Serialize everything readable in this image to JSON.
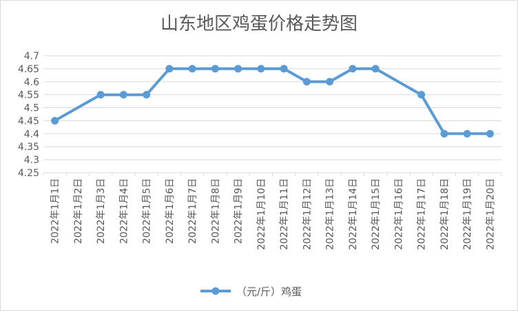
{
  "chart_data": {
    "type": "line",
    "title": "山东地区鸡蛋价格走势图",
    "xlabel": "",
    "ylabel": "",
    "categories": [
      "2022年1月1日",
      "2022年1月2日",
      "2022年1月3日",
      "2022年1月4日",
      "2022年1月5日",
      "2022年1月6日",
      "2022年1月7日",
      "2022年1月8日",
      "2022年1月9日",
      "2022年1月10日",
      "2022年1月11日",
      "2022年1月12日",
      "2022年1月13日",
      "2022年1月14日",
      "2022年1月15日",
      "2022年1月16日",
      "2022年1月17日",
      "2022年1月18日",
      "2022年1月19日",
      "2022年1月20日"
    ],
    "series": [
      {
        "name": "（元/斤）鸡蛋",
        "color": "#5b9bd5",
        "values": [
          4.45,
          null,
          4.55,
          4.55,
          4.55,
          4.65,
          4.65,
          4.65,
          4.65,
          4.65,
          4.65,
          4.6,
          4.6,
          4.65,
          4.65,
          null,
          4.55,
          4.4,
          4.4,
          4.4
        ]
      }
    ],
    "ylim": [
      4.25,
      4.7
    ],
    "yticks": [
      "4.25",
      "4.3",
      "4.35",
      "4.4",
      "4.45",
      "4.5",
      "4.55",
      "4.6",
      "4.65",
      "4.7"
    ],
    "grid": true,
    "legend": "bottom"
  }
}
